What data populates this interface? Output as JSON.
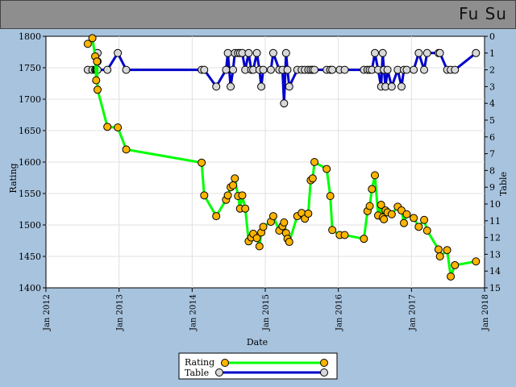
{
  "header": {
    "player_name": "Fu Su"
  },
  "colors": {
    "page_background": "#a7c3de",
    "titlebar": "#8e8e8e",
    "plot_background": "#ffffff",
    "grid": "#e0e0e0",
    "rating_line": "#00ff00",
    "rating_marker": "#ffb400",
    "table_line": "#0000cc",
    "table_marker": "#d8d8d8"
  },
  "chart_data": {
    "type": "line",
    "xlabel": "Date",
    "ylabel_left": "Rating",
    "ylabel_right": "Table",
    "x_range": [
      "2012-01-01",
      "2018-01-01"
    ],
    "x_ticks": [
      "Jan 2012",
      "Jan 2013",
      "Jan 2014",
      "Jan 2015",
      "Jan 2016",
      "Jan 2017",
      "Jan 2018"
    ],
    "y_left_range": [
      1400,
      1800
    ],
    "y_left_ticks": [
      "1400",
      "1450",
      "1500",
      "1550",
      "1600",
      "1650",
      "1700",
      "1750",
      "1800"
    ],
    "y_right_range": [
      0,
      15
    ],
    "y_right_ticks": [
      "0",
      "1",
      "2",
      "3",
      "4",
      "5",
      "6",
      "7",
      "8",
      "9",
      "10",
      "11",
      "12",
      "13",
      "14",
      "15"
    ],
    "y_right_inverted": true,
    "grid": true,
    "legend_position": "bottom-center",
    "series": [
      {
        "name": "Rating",
        "axis": "left",
        "points": [
          [
            "2012-07-28",
            1788
          ],
          [
            "2012-08-20",
            1797
          ],
          [
            "2012-09-03",
            1768
          ],
          [
            "2012-09-08",
            1730
          ],
          [
            "2012-09-12",
            1760
          ],
          [
            "2012-09-15",
            1715
          ],
          [
            "2012-11-03",
            1656
          ],
          [
            "2012-12-25",
            1655
          ],
          [
            "2013-02-05",
            1620
          ],
          [
            "2014-02-17",
            1599
          ],
          [
            "2014-03-02",
            1547
          ],
          [
            "2014-05-01",
            1514
          ],
          [
            "2014-06-19",
            1540
          ],
          [
            "2014-06-28",
            1547
          ],
          [
            "2014-07-12",
            1560
          ],
          [
            "2014-07-24",
            1563
          ],
          [
            "2014-08-02",
            1574
          ],
          [
            "2014-08-18",
            1546
          ],
          [
            "2014-08-28",
            1526
          ],
          [
            "2014-09-08",
            1547
          ],
          [
            "2014-09-23",
            1526
          ],
          [
            "2014-10-10",
            1474
          ],
          [
            "2014-10-23",
            1480
          ],
          [
            "2014-11-02",
            1486
          ],
          [
            "2014-11-20",
            1479
          ],
          [
            "2014-12-03",
            1466
          ],
          [
            "2014-12-12",
            1488
          ],
          [
            "2014-12-22",
            1497
          ],
          [
            "2015-01-29",
            1505
          ],
          [
            "2015-02-10",
            1514
          ],
          [
            "2015-03-12",
            1491
          ],
          [
            "2015-03-28",
            1498
          ],
          [
            "2015-04-05",
            1504
          ],
          [
            "2015-04-15",
            1487
          ],
          [
            "2015-04-22",
            1478
          ],
          [
            "2015-05-01",
            1473
          ],
          [
            "2015-06-10",
            1514
          ],
          [
            "2015-07-02",
            1519
          ],
          [
            "2015-07-18",
            1510
          ],
          [
            "2015-08-04",
            1518
          ],
          [
            "2015-08-16",
            1571
          ],
          [
            "2015-08-26",
            1574
          ],
          [
            "2015-09-04",
            1600
          ],
          [
            "2015-11-04",
            1589
          ],
          [
            "2015-11-22",
            1546
          ],
          [
            "2015-12-02",
            1492
          ],
          [
            "2016-01-08",
            1484
          ],
          [
            "2016-02-02",
            1484
          ],
          [
            "2016-05-08",
            1478
          ],
          [
            "2016-05-26",
            1522
          ],
          [
            "2016-06-06",
            1530
          ],
          [
            "2016-06-17",
            1557
          ],
          [
            "2016-07-02",
            1579
          ],
          [
            "2016-07-18",
            1515
          ],
          [
            "2016-08-02",
            1532
          ],
          [
            "2016-08-10",
            1512
          ],
          [
            "2016-08-16",
            1509
          ],
          [
            "2016-08-24",
            1523
          ],
          [
            "2016-09-03",
            1520
          ],
          [
            "2016-09-24",
            1517
          ],
          [
            "2016-10-24",
            1529
          ],
          [
            "2016-11-12",
            1523
          ],
          [
            "2016-11-24",
            1503
          ],
          [
            "2016-12-08",
            1517
          ],
          [
            "2017-01-12",
            1511
          ],
          [
            "2017-02-06",
            1497
          ],
          [
            "2017-03-05",
            1508
          ],
          [
            "2017-03-20",
            1491
          ],
          [
            "2017-05-16",
            1461
          ],
          [
            "2017-05-23",
            1450
          ],
          [
            "2017-06-28",
            1460
          ],
          [
            "2017-07-16",
            1418
          ],
          [
            "2017-08-06",
            1436
          ],
          [
            "2017-11-19",
            1442
          ]
        ]
      },
      {
        "name": "Table",
        "axis": "right",
        "points": [
          [
            "2012-07-28",
            2
          ],
          [
            "2012-08-20",
            2
          ],
          [
            "2012-09-03",
            2
          ],
          [
            "2012-09-08",
            2
          ],
          [
            "2012-09-12",
            2
          ],
          [
            "2012-09-15",
            1.5
          ],
          [
            "2012-09-15",
            1
          ],
          [
            "2012-09-15",
            2
          ],
          [
            "2012-11-03",
            2
          ],
          [
            "2012-12-25",
            1
          ],
          [
            "2013-02-05",
            2
          ],
          [
            "2014-02-17",
            2
          ],
          [
            "2014-03-02",
            2
          ],
          [
            "2014-05-01",
            3
          ],
          [
            "2014-06-19",
            2
          ],
          [
            "2014-06-28",
            1
          ],
          [
            "2014-07-12",
            3
          ],
          [
            "2014-07-24",
            2
          ],
          [
            "2014-08-02",
            1
          ],
          [
            "2014-08-18",
            1
          ],
          [
            "2014-08-28",
            1
          ],
          [
            "2014-09-08",
            1
          ],
          [
            "2014-09-23",
            2
          ],
          [
            "2014-10-10",
            1
          ],
          [
            "2014-10-23",
            2
          ],
          [
            "2014-11-02",
            2
          ],
          [
            "2014-11-20",
            1
          ],
          [
            "2014-12-03",
            2
          ],
          [
            "2014-12-12",
            3
          ],
          [
            "2014-12-22",
            2
          ],
          [
            "2015-01-29",
            2
          ],
          [
            "2015-02-10",
            1
          ],
          [
            "2015-03-12",
            2
          ],
          [
            "2015-03-28",
            2
          ],
          [
            "2015-04-05",
            4
          ],
          [
            "2015-04-15",
            1
          ],
          [
            "2015-04-22",
            2
          ],
          [
            "2015-05-01",
            3
          ],
          [
            "2015-06-10",
            2
          ],
          [
            "2015-07-02",
            2
          ],
          [
            "2015-07-18",
            2
          ],
          [
            "2015-08-04",
            2
          ],
          [
            "2015-08-16",
            2
          ],
          [
            "2015-08-26",
            2
          ],
          [
            "2015-09-04",
            2
          ],
          [
            "2015-11-04",
            2
          ],
          [
            "2015-11-22",
            2
          ],
          [
            "2015-12-02",
            2
          ],
          [
            "2016-01-08",
            2
          ],
          [
            "2016-02-02",
            2
          ],
          [
            "2016-05-08",
            2
          ],
          [
            "2016-05-26",
            2
          ],
          [
            "2016-06-06",
            2
          ],
          [
            "2016-06-17",
            2
          ],
          [
            "2016-07-02",
            1
          ],
          [
            "2016-07-18",
            2
          ],
          [
            "2016-08-02",
            3
          ],
          [
            "2016-08-10",
            1
          ],
          [
            "2016-08-16",
            2
          ],
          [
            "2016-08-24",
            3
          ],
          [
            "2016-09-03",
            2
          ],
          [
            "2016-09-24",
            3
          ],
          [
            "2016-10-24",
            2
          ],
          [
            "2016-11-12",
            3
          ],
          [
            "2016-11-24",
            2
          ],
          [
            "2016-12-08",
            2
          ],
          [
            "2017-01-12",
            2
          ],
          [
            "2017-02-06",
            1
          ],
          [
            "2017-03-05",
            2
          ],
          [
            "2017-03-20",
            1
          ],
          [
            "2017-05-16",
            1
          ],
          [
            "2017-05-23",
            1
          ],
          [
            "2017-06-28",
            2
          ],
          [
            "2017-07-16",
            2
          ],
          [
            "2017-08-06",
            2
          ],
          [
            "2017-11-19",
            1
          ]
        ]
      }
    ]
  }
}
